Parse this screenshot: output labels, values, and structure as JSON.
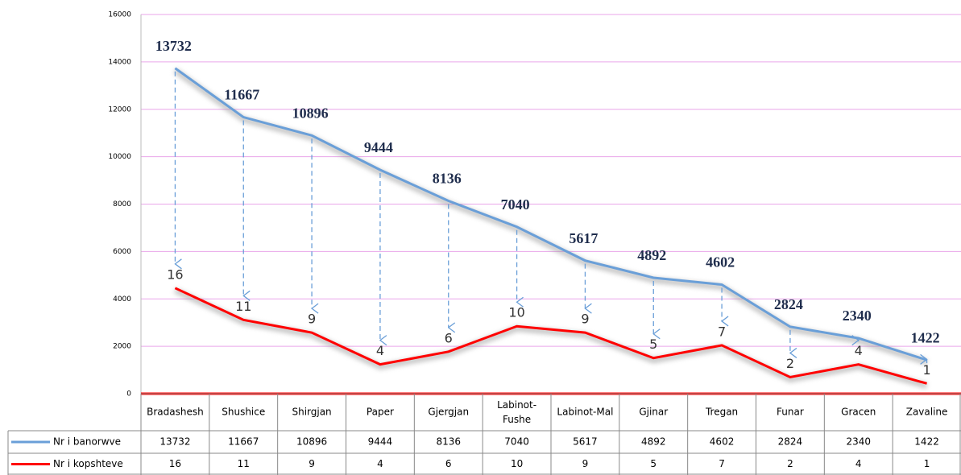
{
  "chart_data": {
    "type": "line",
    "categories": [
      "Bradashesh",
      "Shushice",
      "Shirgjan",
      "Paper",
      "Gjergjan",
      "Labinot-Fushe",
      "Labinot-Mal",
      "Gjinar",
      "Tregan",
      "Funar",
      "Gracen",
      "Zavaline"
    ],
    "series": [
      {
        "name": "Nr i banorwve",
        "color": "#6a9fd8",
        "values": [
          13732,
          11667,
          10896,
          9444,
          8136,
          7040,
          5617,
          4892,
          4602,
          2824,
          2340,
          1422
        ]
      },
      {
        "name": "Nr i kopshteve",
        "color": "#ff0000",
        "axis": "y2",
        "values": [
          16,
          11,
          9,
          4,
          6,
          10,
          9,
          5,
          7,
          2,
          4,
          1
        ]
      }
    ],
    "ylim": [
      0,
      16000
    ],
    "yticks": [
      0,
      2000,
      4000,
      6000,
      8000,
      10000,
      12000,
      14000,
      16000
    ],
    "y2lim": [
      -0.6,
      59
    ],
    "grid": true,
    "data_table": true
  }
}
